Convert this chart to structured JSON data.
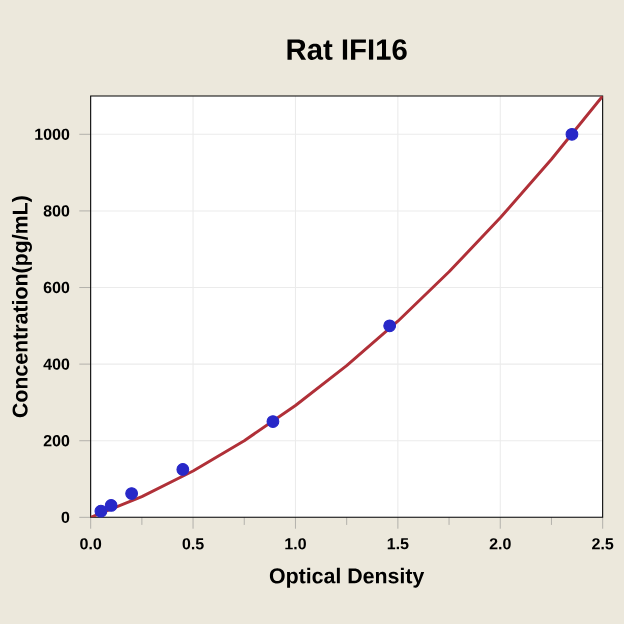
{
  "chart_data": {
    "type": "scatter",
    "title": "Rat IFI16",
    "xlabel": "Optical Density",
    "ylabel": "Concentration(pg/mL)",
    "xlim": [
      0,
      2.5
    ],
    "ylim": [
      0,
      1100
    ],
    "xticks": [
      {
        "value": 0,
        "label": "0.0"
      },
      {
        "value": 0.5,
        "label": "0.5"
      },
      {
        "value": 1,
        "label": "1.0"
      },
      {
        "value": 1.5,
        "label": "1.5"
      },
      {
        "value": 2,
        "label": "2.0"
      },
      {
        "value": 2.5,
        "label": "2.5"
      }
    ],
    "yticks": [
      0,
      200,
      400,
      600,
      800,
      1000
    ],
    "grid": true,
    "series": [
      {
        "type": "line",
        "color": "#b03038",
        "marker": "none",
        "line_style": "solid",
        "x": [
          0,
          0.25,
          0.5,
          0.75,
          1.0,
          1.25,
          1.5,
          1.75,
          2.0,
          2.25,
          2.5
        ],
        "values": [
          0,
          54,
          121,
          200,
          292,
          396,
          512,
          641,
          782,
          935,
          1100
        ]
      },
      {
        "color": "#2828c8",
        "marker": "circle",
        "x": [
          0.05,
          0.1,
          0.2,
          0.45,
          0.89,
          1.46,
          2.35
        ],
        "values": [
          16,
          31,
          62,
          125,
          250,
          500,
          1000
        ]
      }
    ]
  }
}
